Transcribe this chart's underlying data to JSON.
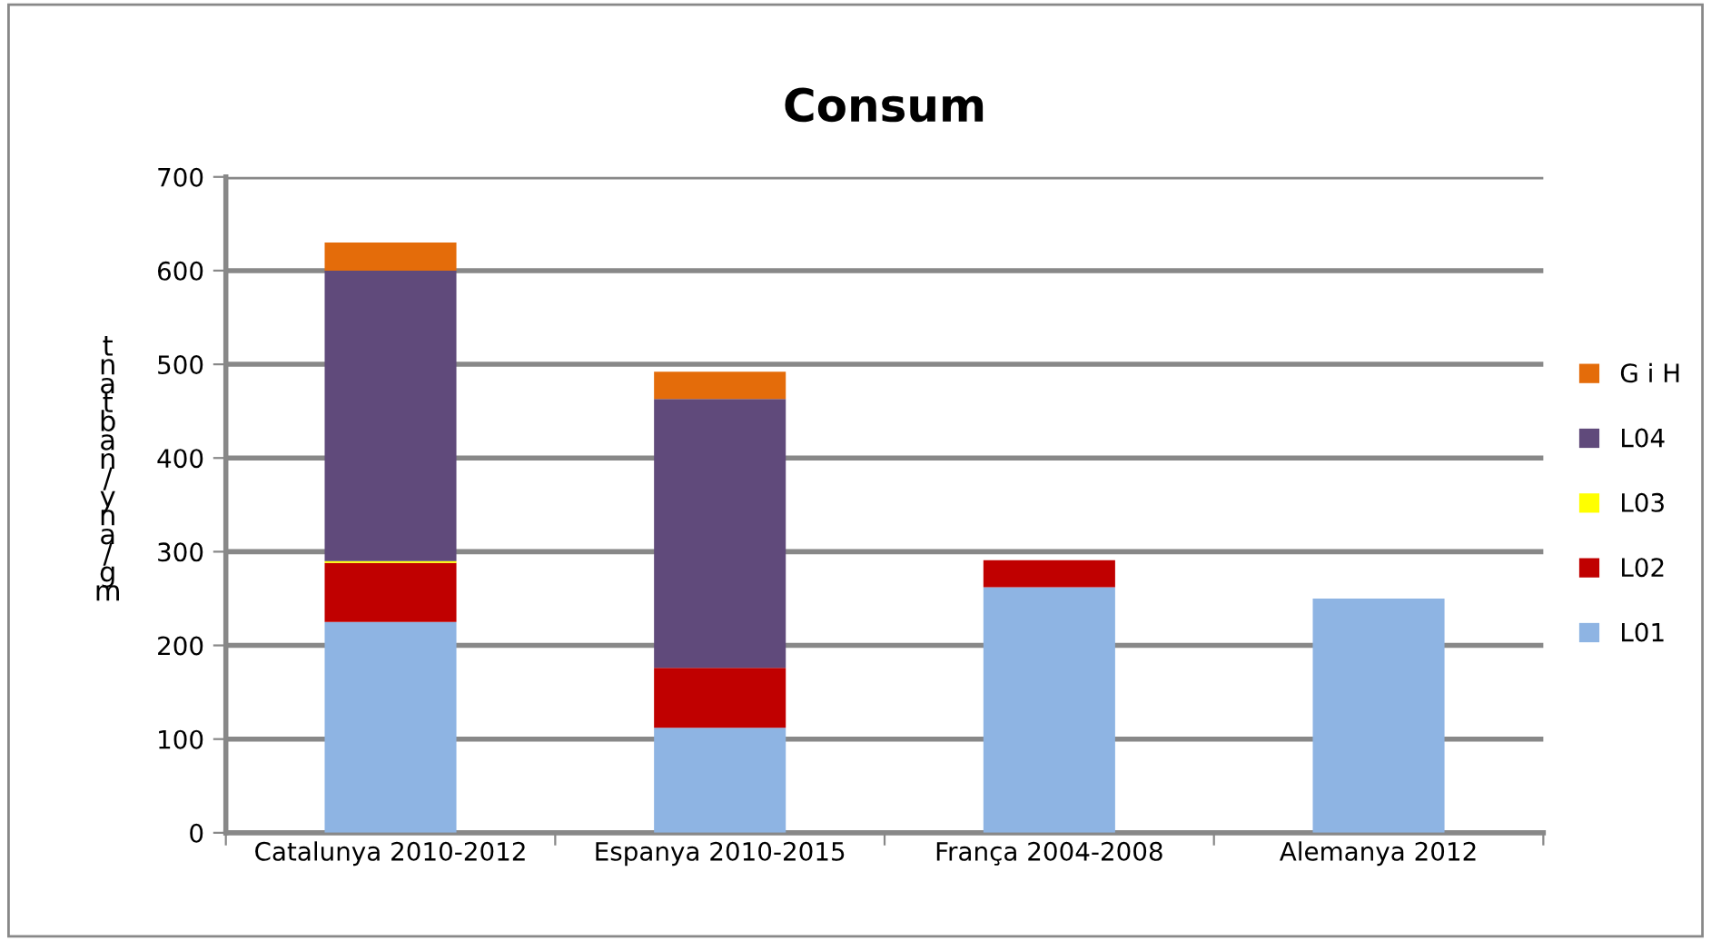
{
  "chart_data": {
    "type": "bar",
    "title": "Consum",
    "ylabel": "tnatban/yna/gm",
    "categories": [
      "Catalunya 2010-2012",
      "Espanya 2010-2015",
      "França 2004-2008",
      "Alemanya 2012"
    ],
    "stacked": true,
    "series": [
      {
        "name": "L01",
        "color": "#8eb4e3",
        "values": [
          225,
          112,
          262,
          250
        ]
      },
      {
        "name": "L02",
        "color": "#c00000",
        "values": [
          63,
          64,
          29,
          0
        ]
      },
      {
        "name": "L03",
        "color": "#ffff00",
        "values": [
          2,
          0,
          0,
          0
        ]
      },
      {
        "name": "L04",
        "color": "#604a7b",
        "values": [
          310,
          287,
          0,
          0
        ]
      },
      {
        "name": "G i H",
        "color": "#e46c0a",
        "values": [
          30,
          29,
          0,
          0
        ]
      }
    ],
    "ylim": [
      0,
      700
    ],
    "yticks": [
      0,
      100,
      200,
      300,
      400,
      500,
      600,
      700
    ],
    "grid": "y",
    "legend": "right"
  }
}
